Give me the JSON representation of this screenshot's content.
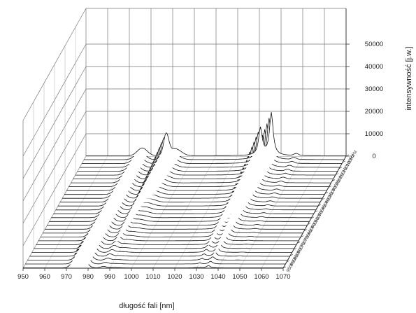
{
  "chart_data": {
    "type": "line",
    "title": "",
    "xlabel": "długość fali [nm]",
    "ylabel": "intensywność [j.w.]",
    "xlim": [
      950,
      1070
    ],
    "zlim": [
      0,
      55000
    ],
    "x_ticks": [
      "950",
      "960",
      "970",
      "980",
      "990",
      "1000",
      "1010",
      "1020",
      "1030",
      "1040",
      "1050",
      "1060",
      "1070"
    ],
    "z_ticks": [
      "0",
      "10000",
      "20000",
      "30000",
      "40000",
      "50000"
    ],
    "depth_axis_labels": [
      "50Hz",
      "100Hz",
      "150Hz",
      "200Hz",
      "250Hz",
      "300Hz",
      "350Hz",
      "400Hz",
      "450Hz",
      "500Hz",
      "550Hz",
      "600Hz",
      "650Hz",
      "700Hz",
      "750Hz",
      "800Hz",
      "850Hz",
      "900Hz",
      "950Hz"
    ],
    "series_count": 30,
    "peak_wavelengths_nm": [
      977,
      987,
      1031,
      1036
    ],
    "peaks_back_row": [
      {
        "x": 977,
        "y": 3500
      },
      {
        "x": 987,
        "y": 8500
      },
      {
        "x": 1031,
        "y": 12000
      },
      {
        "x": 1036,
        "y": 19000
      }
    ],
    "peaks_front_row": [
      {
        "x": 975,
        "y": 9000
      },
      {
        "x": 1035,
        "y": 1000
      }
    ],
    "grid": true
  }
}
